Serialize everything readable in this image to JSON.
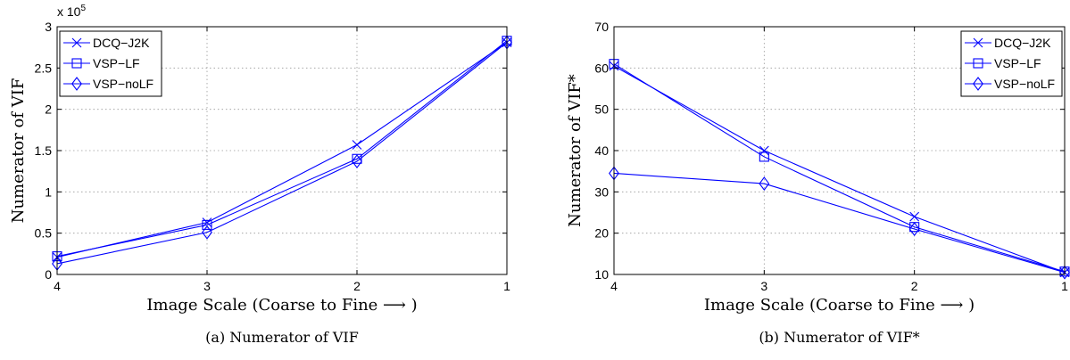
{
  "chart_data": [
    {
      "type": "line",
      "panel": "a",
      "x": [
        4,
        3,
        2,
        1
      ],
      "x_ticks": [
        "4",
        "3",
        "2",
        "1"
      ],
      "xlim": [
        4,
        1
      ],
      "ylim": [
        0,
        300000
      ],
      "y_ticks": [
        "0",
        "0.5",
        "1",
        "1.5",
        "2",
        "2.5",
        "3"
      ],
      "y_exponent": "x 10",
      "y_exponent_power": "5",
      "xlabel": "Image Scale (Coarse to Fine ⟶ )",
      "ylabel": "Numerator of VIF",
      "caption": "(a) Numerator of VIF",
      "grid": true,
      "legend_position": "top-left",
      "series": [
        {
          "name": "DCQ−J2K",
          "marker": "x",
          "values": [
            21000,
            63000,
            157000,
            281000
          ]
        },
        {
          "name": "VSP−LF",
          "marker": "square",
          "values": [
            22000,
            60000,
            140000,
            283000
          ]
        },
        {
          "name": "VSP−noLF",
          "marker": "diamond",
          "values": [
            13000,
            51000,
            137000,
            281000
          ]
        }
      ]
    },
    {
      "type": "line",
      "panel": "b",
      "x": [
        4,
        3,
        2,
        1
      ],
      "x_ticks": [
        "4",
        "3",
        "2",
        "1"
      ],
      "xlim": [
        4,
        1
      ],
      "ylim": [
        10,
        70
      ],
      "y_ticks": [
        "10",
        "20",
        "30",
        "40",
        "50",
        "60",
        "70"
      ],
      "xlabel": "Image Scale (Coarse to Fine ⟶ )",
      "ylabel": "Numerator of VIF*",
      "caption": "(b) Numerator of VIF*",
      "grid": true,
      "legend_position": "top-right",
      "series": [
        {
          "name": "DCQ−J2K",
          "marker": "x",
          "values": [
            60.5,
            40,
            24,
            10.5
          ]
        },
        {
          "name": "VSP−LF",
          "marker": "square",
          "values": [
            61,
            38.5,
            21.5,
            10.7
          ]
        },
        {
          "name": "VSP−noLF",
          "marker": "diamond",
          "values": [
            34.5,
            32,
            21,
            10.5
          ]
        }
      ]
    }
  ],
  "colors": {
    "line": "#0000ff",
    "grid": "#9a9a9a",
    "axis": "#000000"
  }
}
